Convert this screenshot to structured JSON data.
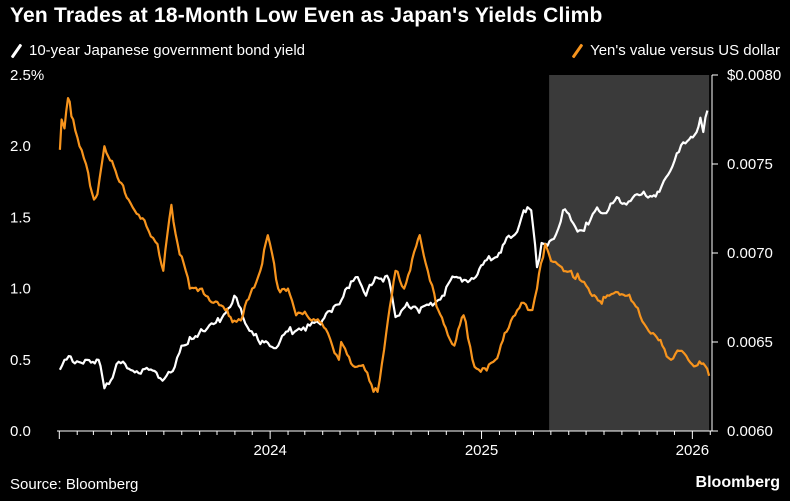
{
  "header": {
    "title": "Yen Trades at 18-Month Low Even as Japan's Yields Climb"
  },
  "footer": {
    "source": "Source: Bloomberg",
    "brand": "Bloomberg"
  },
  "colors": {
    "background": "#000000",
    "jgb_line": "#ffffff",
    "yen_line": "#f7941d",
    "highlight": "#3a3a3a"
  },
  "chart_data": {
    "type": "line",
    "title": "Yen Trades at 18-Month Low Even as Japan's Yields Climb",
    "xlabel": "",
    "grid": false,
    "legend_position": "top",
    "x_tick_labels": [
      "2024",
      "2025",
      "2026"
    ],
    "y_left": {
      "tick_labels": [
        "0.0",
        "0.5",
        "1.0",
        "1.5",
        "2.0",
        "2.5%"
      ],
      "ylim": [
        0,
        2.5
      ]
    },
    "y_right": {
      "tick_labels": [
        "0.0060",
        "0.0065",
        "0.0070",
        "0.0075",
        "$0.0080"
      ],
      "ylim": [
        0.006,
        0.008
      ]
    },
    "highlight_region": {
      "x_start": "2025-04-28",
      "x_end": "2026-01-30"
    },
    "series": [
      {
        "name": "10-year Japanese government bond yield",
        "axis": "left",
        "color": "#ffffff",
        "points": [
          [
            "2023-01-02",
            0.43
          ],
          [
            "2023-01-10",
            0.5
          ],
          [
            "2023-02-15",
            0.5
          ],
          [
            "2023-03-10",
            0.5
          ],
          [
            "2023-03-20",
            0.3
          ],
          [
            "2023-03-28",
            0.33
          ],
          [
            "2023-04-10",
            0.47
          ],
          [
            "2023-04-25",
            0.47
          ],
          [
            "2023-05-15",
            0.42
          ],
          [
            "2023-06-05",
            0.43
          ],
          [
            "2023-06-25",
            0.37
          ],
          [
            "2023-07-20",
            0.45
          ],
          [
            "2023-07-28",
            0.55
          ],
          [
            "2023-08-15",
            0.66
          ],
          [
            "2023-09-10",
            0.7
          ],
          [
            "2023-09-29",
            0.76
          ],
          [
            "2023-10-20",
            0.86
          ],
          [
            "2023-10-31",
            0.95
          ],
          [
            "2023-11-15",
            0.8
          ],
          [
            "2023-11-30",
            0.7
          ],
          [
            "2023-12-15",
            0.61
          ],
          [
            "2023-12-28",
            0.62
          ],
          [
            "2024-01-15",
            0.6
          ],
          [
            "2024-02-01",
            0.7
          ],
          [
            "2024-02-20",
            0.72
          ],
          [
            "2024-03-10",
            0.74
          ],
          [
            "2024-03-25",
            0.76
          ],
          [
            "2024-04-10",
            0.84
          ],
          [
            "2024-04-30",
            0.89
          ],
          [
            "2024-05-20",
            1.05
          ],
          [
            "2024-05-28",
            1.08
          ],
          [
            "2024-06-15",
            0.95
          ],
          [
            "2024-07-01",
            1.08
          ],
          [
            "2024-07-25",
            1.06
          ],
          [
            "2024-08-05",
            0.8
          ],
          [
            "2024-08-25",
            0.9
          ],
          [
            "2024-09-15",
            0.83
          ],
          [
            "2024-10-05",
            0.9
          ],
          [
            "2024-10-25",
            0.95
          ],
          [
            "2024-11-15",
            1.08
          ],
          [
            "2024-12-05",
            1.06
          ],
          [
            "2024-12-25",
            1.1
          ],
          [
            "2025-01-10",
            1.2
          ],
          [
            "2025-01-25",
            1.22
          ],
          [
            "2025-02-10",
            1.32
          ],
          [
            "2025-02-28",
            1.38
          ],
          [
            "2025-03-15",
            1.55
          ],
          [
            "2025-03-28",
            1.55
          ],
          [
            "2025-04-07",
            1.15
          ],
          [
            "2025-04-15",
            1.32
          ],
          [
            "2025-04-25",
            1.3
          ],
          [
            "2025-05-10",
            1.38
          ],
          [
            "2025-05-22",
            1.55
          ],
          [
            "2025-06-05",
            1.48
          ],
          [
            "2025-06-20",
            1.41
          ],
          [
            "2025-07-05",
            1.45
          ],
          [
            "2025-07-20",
            1.57
          ],
          [
            "2025-08-05",
            1.53
          ],
          [
            "2025-08-20",
            1.62
          ],
          [
            "2025-09-05",
            1.6
          ],
          [
            "2025-09-20",
            1.64
          ],
          [
            "2025-10-05",
            1.66
          ],
          [
            "2025-10-20",
            1.65
          ],
          [
            "2025-11-05",
            1.68
          ],
          [
            "2025-11-20",
            1.8
          ],
          [
            "2025-12-05",
            1.95
          ],
          [
            "2025-12-20",
            2.02
          ],
          [
            "2026-01-05",
            2.08
          ],
          [
            "2026-01-15",
            2.2
          ],
          [
            "2026-01-20",
            2.1
          ],
          [
            "2026-01-27",
            2.25
          ]
        ]
      },
      {
        "name": "Yen's value versus US dollar",
        "axis": "right",
        "color": "#f7941d",
        "points": [
          [
            "2023-01-02",
            0.00758
          ],
          [
            "2023-01-05",
            0.00775
          ],
          [
            "2023-01-10",
            0.0077
          ],
          [
            "2023-01-16",
            0.00787
          ],
          [
            "2023-01-25",
            0.00775
          ],
          [
            "2023-02-05",
            0.0076
          ],
          [
            "2023-02-20",
            0.00745
          ],
          [
            "2023-03-02",
            0.0073
          ],
          [
            "2023-03-08",
            0.00733
          ],
          [
            "2023-03-20",
            0.0076
          ],
          [
            "2023-03-30",
            0.00752
          ],
          [
            "2023-04-15",
            0.0074
          ],
          [
            "2023-05-01",
            0.0073
          ],
          [
            "2023-05-15",
            0.00722
          ],
          [
            "2023-06-01",
            0.00715
          ],
          [
            "2023-06-20",
            0.00705
          ],
          [
            "2023-06-30",
            0.0069
          ],
          [
            "2023-07-14",
            0.00727
          ],
          [
            "2023-07-25",
            0.00705
          ],
          [
            "2023-08-15",
            0.0068
          ],
          [
            "2023-09-05",
            0.0068
          ],
          [
            "2023-09-25",
            0.00672
          ],
          [
            "2023-10-15",
            0.00668
          ],
          [
            "2023-10-31",
            0.00662
          ],
          [
            "2023-11-15",
            0.00665
          ],
          [
            "2023-12-01",
            0.0068
          ],
          [
            "2023-12-15",
            0.0069
          ],
          [
            "2023-12-28",
            0.0071
          ],
          [
            "2024-01-15",
            0.0068
          ],
          [
            "2024-02-01",
            0.0068
          ],
          [
            "2024-02-15",
            0.00665
          ],
          [
            "2024-03-01",
            0.00667
          ],
          [
            "2024-03-20",
            0.00662
          ],
          [
            "2024-04-10",
            0.00655
          ],
          [
            "2024-04-29",
            0.0064
          ],
          [
            "2024-05-03",
            0.0065
          ],
          [
            "2024-05-20",
            0.00638
          ],
          [
            "2024-06-10",
            0.00637
          ],
          [
            "2024-06-28",
            0.00622
          ],
          [
            "2024-07-05",
            0.00622
          ],
          [
            "2024-07-20",
            0.00655
          ],
          [
            "2024-08-05",
            0.0069
          ],
          [
            "2024-08-20",
            0.0068
          ],
          [
            "2024-09-10",
            0.00704
          ],
          [
            "2024-09-16",
            0.0071
          ],
          [
            "2024-09-30",
            0.0069
          ],
          [
            "2024-10-15",
            0.0067
          ],
          [
            "2024-10-31",
            0.00658
          ],
          [
            "2024-11-15",
            0.00648
          ],
          [
            "2024-12-01",
            0.00665
          ],
          [
            "2024-12-20",
            0.00636
          ],
          [
            "2025-01-10",
            0.00634
          ],
          [
            "2025-01-25",
            0.0064
          ],
          [
            "2025-02-10",
            0.00655
          ],
          [
            "2025-02-28",
            0.00665
          ],
          [
            "2025-03-15",
            0.00672
          ],
          [
            "2025-03-30",
            0.00668
          ],
          [
            "2025-04-07",
            0.0068
          ],
          [
            "2025-04-21",
            0.00705
          ],
          [
            "2025-05-05",
            0.00695
          ],
          [
            "2025-05-20",
            0.00692
          ],
          [
            "2025-06-05",
            0.0069
          ],
          [
            "2025-06-20",
            0.00685
          ],
          [
            "2025-07-05",
            0.0068
          ],
          [
            "2025-07-25",
            0.00673
          ],
          [
            "2025-08-10",
            0.00676
          ],
          [
            "2025-08-25",
            0.00678
          ],
          [
            "2025-09-10",
            0.00676
          ],
          [
            "2025-09-25",
            0.0067
          ],
          [
            "2025-10-10",
            0.0066
          ],
          [
            "2025-10-25",
            0.00655
          ],
          [
            "2025-11-10",
            0.00648
          ],
          [
            "2025-11-25",
            0.0064
          ],
          [
            "2025-12-10",
            0.00645
          ],
          [
            "2025-12-25",
            0.0064
          ],
          [
            "2026-01-10",
            0.00637
          ],
          [
            "2026-01-20",
            0.00638
          ],
          [
            "2026-01-30",
            0.00631
          ]
        ]
      }
    ]
  }
}
